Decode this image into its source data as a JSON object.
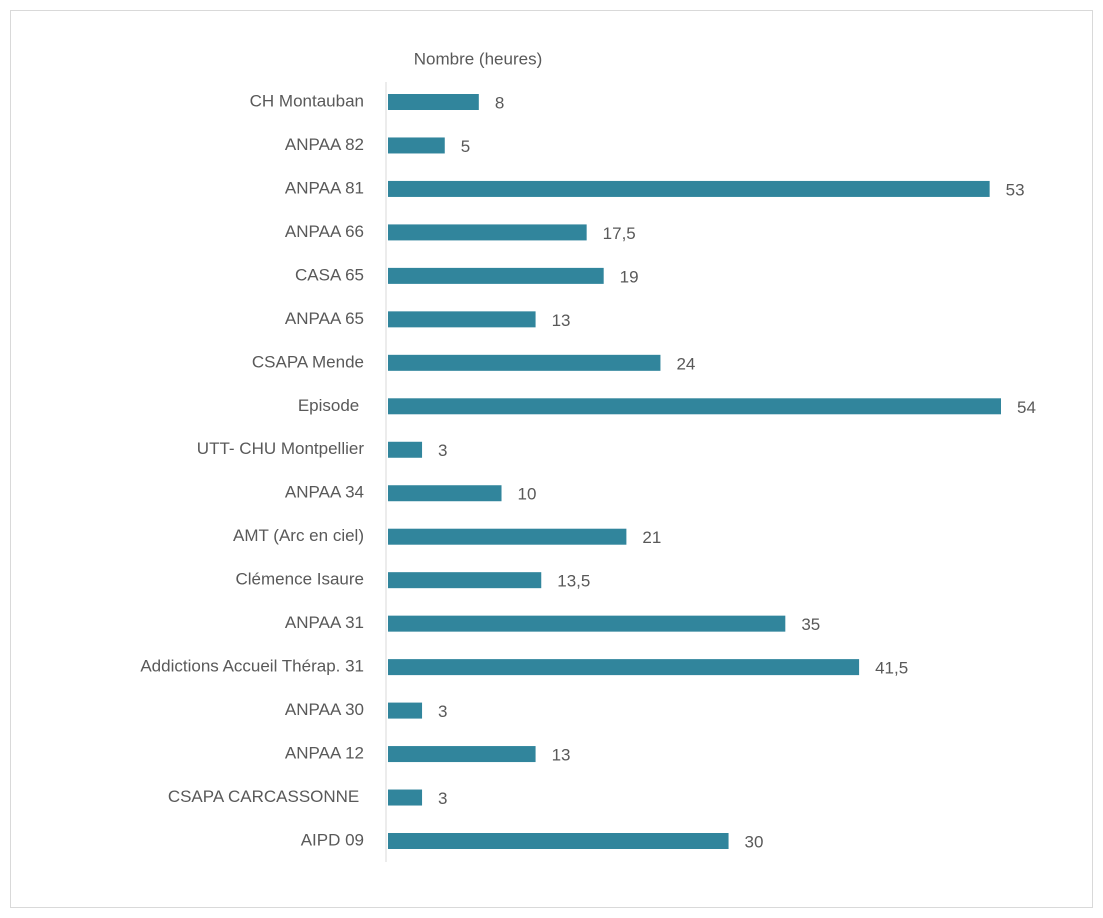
{
  "chart_data": {
    "type": "barh",
    "title": "Nombre (heures)",
    "categories": [
      "CH Montauban",
      "ANPAA 82",
      "ANPAA 81",
      "ANPAA 66",
      "CASA 65",
      "ANPAA 65",
      "CSAPA Mende",
      "Episode ",
      "UTT- CHU Montpellier",
      "ANPAA 34",
      "AMT (Arc en ciel)",
      "Clémence Isaure",
      "ANPAA 31",
      "Addictions Accueil Thérap. 31",
      "ANPAA 30",
      "ANPAA 12",
      "CSAPA CARCASSONNE ",
      "AIPD 09"
    ],
    "values": [
      8,
      5,
      53,
      17.5,
      19,
      13,
      24,
      54,
      3,
      10,
      21,
      13.5,
      35,
      41.5,
      3,
      13,
      3,
      30
    ],
    "value_labels": [
      "8",
      "5",
      "53",
      "17,5",
      "19",
      "13",
      "24",
      "54",
      "3",
      "10",
      "21",
      "13,5",
      "35",
      "41,5",
      "3",
      "13",
      "3",
      "30"
    ],
    "color": "#31859c"
  }
}
